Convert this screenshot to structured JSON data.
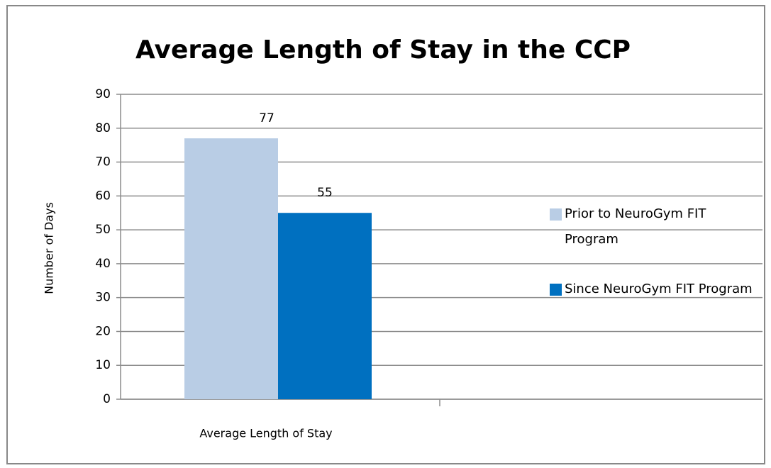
{
  "chart_data": {
    "type": "bar",
    "title": "Average Length of Stay in the CCP",
    "y_label": "Number of Days",
    "categories": [
      "Average Length of Stay"
    ],
    "series": [
      {
        "name": "Prior to NeuroGym FIT Program",
        "color": "#b9cde5",
        "values": [
          77
        ]
      },
      {
        "name": "Since NeuroGym FIT Program",
        "color": "#0070c0",
        "values": [
          55
        ]
      }
    ],
    "ylim": [
      0,
      90
    ],
    "yticks": [
      0,
      10,
      20,
      30,
      40,
      50,
      60,
      70,
      80,
      90
    ],
    "grid": true,
    "legend": "right"
  }
}
